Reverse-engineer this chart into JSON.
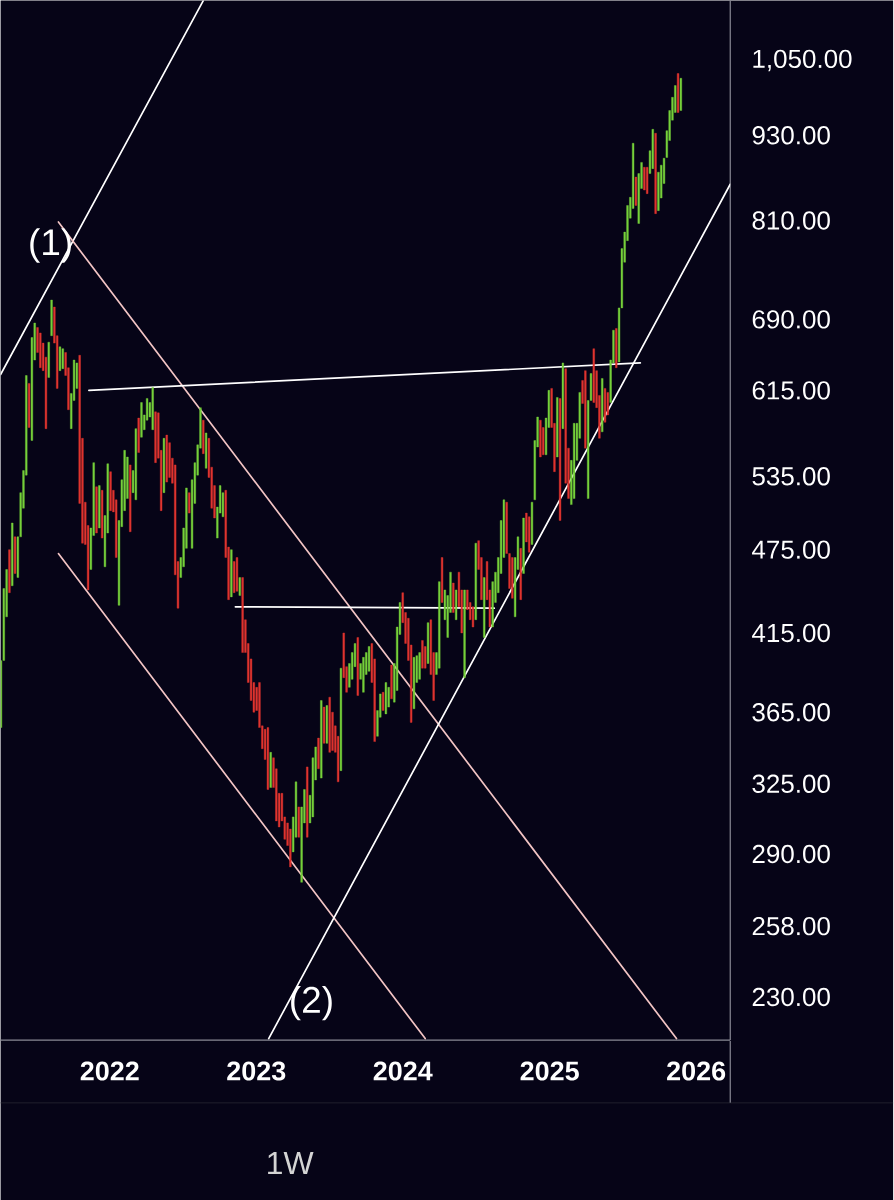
{
  "chart_data": {
    "type": "candlestick",
    "x": [
      "2021-04-05",
      "2021-04-12",
      "2021-04-19",
      "2021-04-26",
      "2021-05-03",
      "2021-05-10",
      "2021-05-17",
      "2021-05-24",
      "2021-05-31",
      "2021-06-07",
      "2021-06-14",
      "2021-06-21",
      "2021-06-28",
      "2021-07-05",
      "2021-07-12",
      "2021-07-19",
      "2021-07-26",
      "2021-08-02",
      "2021-08-09",
      "2021-08-16",
      "2021-08-23",
      "2021-08-30",
      "2021-09-06",
      "2021-09-13",
      "2021-09-20",
      "2021-09-27",
      "2021-10-04",
      "2021-10-11",
      "2021-10-18",
      "2021-10-25",
      "2021-11-01",
      "2021-11-08",
      "2021-11-15",
      "2021-11-22",
      "2021-11-29",
      "2021-12-06",
      "2021-12-13",
      "2021-12-20",
      "2021-12-27",
      "2022-01-03",
      "2022-01-10",
      "2022-01-17",
      "2022-01-24",
      "2022-01-31",
      "2022-02-07",
      "2022-02-14",
      "2022-02-21",
      "2022-02-28",
      "2022-03-07",
      "2022-03-14",
      "2022-03-21",
      "2022-03-28",
      "2022-04-04",
      "2022-04-11",
      "2022-04-18",
      "2022-04-25",
      "2022-05-02",
      "2022-05-09",
      "2022-05-16",
      "2022-05-23",
      "2022-05-30",
      "2022-06-06",
      "2022-06-13",
      "2022-06-20",
      "2022-06-27",
      "2022-07-04",
      "2022-07-11",
      "2022-07-18",
      "2022-07-25",
      "2022-08-01",
      "2022-08-08",
      "2022-08-15",
      "2022-08-22",
      "2022-08-29",
      "2022-09-05",
      "2022-09-12",
      "2022-09-19",
      "2022-09-26",
      "2022-10-03",
      "2022-10-10",
      "2022-10-17",
      "2022-10-24",
      "2022-10-31",
      "2022-11-07",
      "2022-11-14",
      "2022-11-21",
      "2022-11-28",
      "2022-12-05",
      "2022-12-12",
      "2022-12-19",
      "2022-12-26",
      "2023-01-02",
      "2023-01-09",
      "2023-01-16",
      "2023-01-23",
      "2023-01-30",
      "2023-02-06",
      "2023-02-13",
      "2023-02-20",
      "2023-02-27",
      "2023-03-06",
      "2023-03-13",
      "2023-03-20",
      "2023-03-27",
      "2023-04-03",
      "2023-04-10",
      "2023-04-17",
      "2023-04-24",
      "2023-05-01",
      "2023-05-08",
      "2023-05-15",
      "2023-05-22",
      "2023-05-29",
      "2023-06-05",
      "2023-06-12",
      "2023-06-19",
      "2023-06-26",
      "2023-07-03",
      "2023-07-10",
      "2023-07-17",
      "2023-07-24",
      "2023-07-31",
      "2023-08-07",
      "2023-08-14",
      "2023-08-21",
      "2023-08-28",
      "2023-09-04",
      "2023-09-11",
      "2023-09-18",
      "2023-09-25",
      "2023-10-02",
      "2023-10-09",
      "2023-10-16",
      "2023-10-23",
      "2023-10-30",
      "2023-11-06",
      "2023-11-13",
      "2023-11-20",
      "2023-11-27",
      "2023-12-04",
      "2023-12-11",
      "2023-12-18",
      "2023-12-25",
      "2024-01-01",
      "2024-01-08",
      "2024-01-15",
      "2024-01-22",
      "2024-01-29",
      "2024-02-05",
      "2024-02-12",
      "2024-02-19",
      "2024-02-26",
      "2024-03-04",
      "2024-03-11",
      "2024-03-18",
      "2024-03-25",
      "2024-04-01",
      "2024-04-08",
      "2024-04-15",
      "2024-04-22",
      "2024-04-29",
      "2024-05-06",
      "2024-05-13",
      "2024-05-20",
      "2024-05-27",
      "2024-06-03",
      "2024-06-10",
      "2024-06-17",
      "2024-06-24",
      "2024-07-01",
      "2024-07-08",
      "2024-07-15",
      "2024-07-22",
      "2024-07-29",
      "2024-08-05",
      "2024-08-12",
      "2024-08-19",
      "2024-08-26",
      "2024-09-02",
      "2024-09-09",
      "2024-09-16",
      "2024-09-23",
      "2024-09-30",
      "2024-10-07",
      "2024-10-14",
      "2024-10-21",
      "2024-10-28",
      "2024-11-04",
      "2024-11-11",
      "2024-11-18",
      "2024-11-25",
      "2024-12-02",
      "2024-12-09",
      "2024-12-16",
      "2024-12-23",
      "2024-12-30",
      "2025-01-06",
      "2025-01-13",
      "2025-01-20",
      "2025-01-27",
      "2025-02-03",
      "2025-02-10",
      "2025-02-17",
      "2025-02-24",
      "2025-03-03",
      "2025-03-10",
      "2025-03-17",
      "2025-03-24",
      "2025-03-31",
      "2025-04-07",
      "2025-04-14",
      "2025-04-21",
      "2025-04-28",
      "2025-05-05",
      "2025-05-12",
      "2025-05-19",
      "2025-05-26",
      "2025-06-02",
      "2025-06-09",
      "2025-06-16",
      "2025-06-23",
      "2025-06-30",
      "2025-07-07",
      "2025-07-14",
      "2025-07-21",
      "2025-07-28",
      "2025-08-04",
      "2025-08-11",
      "2025-08-18",
      "2025-08-25",
      "2025-09-01",
      "2025-09-08",
      "2025-09-15",
      "2025-09-22",
      "2025-09-29",
      "2025-10-06",
      "2025-10-13",
      "2025-10-20",
      "2025-10-27",
      "2025-11-03",
      "2025-11-10",
      "2025-11-17",
      "2025-11-24"
    ],
    "ohlc": [
      [
        356,
        397,
        356,
        397
      ],
      [
        397,
        446,
        397,
        446
      ],
      [
        426,
        460,
        426,
        460
      ],
      [
        475,
        475,
        443,
        443
      ],
      [
        448,
        496,
        448,
        496
      ],
      [
        485,
        485,
        457,
        457
      ],
      [
        454,
        485,
        454,
        485
      ],
      [
        485,
        521,
        485,
        521
      ],
      [
        508,
        540,
        508,
        540
      ],
      [
        536,
        630,
        536,
        630
      ],
      [
        622,
        622,
        579,
        579
      ],
      [
        567,
        670,
        567,
        670
      ],
      [
        646,
        686,
        646,
        686
      ],
      [
        681,
        681,
        654,
        654
      ],
      [
        675,
        675,
        638,
        638
      ],
      [
        664,
        664,
        635,
        635
      ],
      [
        649,
        649,
        578,
        578
      ],
      [
        628,
        665,
        628,
        665
      ],
      [
        672,
        712,
        672,
        712
      ],
      [
        704,
        704,
        664,
        664
      ],
      [
        672,
        672,
        617,
        617
      ],
      [
        635,
        660,
        635,
        660
      ],
      [
        637,
        658,
        637,
        658
      ],
      [
        654,
        654,
        630,
        630
      ],
      [
        638,
        638,
        596,
        596
      ],
      [
        578,
        612,
        578,
        612
      ],
      [
        605,
        646,
        605,
        646
      ],
      [
        617,
        643,
        617,
        643
      ],
      [
        651,
        651,
        512,
        512
      ],
      [
        569,
        569,
        480,
        480
      ],
      [
        513,
        513,
        479,
        479
      ],
      [
        494,
        494,
        445,
        445
      ],
      [
        460,
        492,
        460,
        492
      ],
      [
        486,
        547,
        486,
        547
      ],
      [
        526,
        526,
        488,
        488
      ],
      [
        492,
        527,
        492,
        527
      ],
      [
        523,
        523,
        484,
        484
      ],
      [
        462,
        502,
        462,
        502
      ],
      [
        488,
        546,
        488,
        546
      ],
      [
        539,
        539,
        506,
        506
      ],
      [
        523,
        523,
        505,
        505
      ],
      [
        515,
        515,
        469,
        469
      ],
      [
        434,
        498,
        434,
        498
      ],
      [
        493,
        532,
        493,
        532
      ],
      [
        506,
        558,
        506,
        558
      ],
      [
        516,
        552,
        516,
        552
      ],
      [
        545,
        545,
        489,
        489
      ],
      [
        521,
        540,
        521,
        540
      ],
      [
        515,
        578,
        515,
        578
      ],
      [
        588,
        588,
        556,
        556
      ],
      [
        570,
        603,
        570,
        603
      ],
      [
        577,
        591,
        577,
        591
      ],
      [
        586,
        607,
        586,
        607
      ],
      [
        589,
        603,
        589,
        603
      ],
      [
        577,
        618,
        577,
        618
      ],
      [
        594,
        594,
        547,
        547
      ],
      [
        593,
        593,
        551,
        551
      ],
      [
        558,
        558,
        506,
        506
      ],
      [
        521,
        569,
        521,
        569
      ],
      [
        572,
        572,
        530,
        530
      ],
      [
        565,
        565,
        534,
        534
      ],
      [
        551,
        551,
        529,
        529
      ],
      [
        545,
        545,
        456,
        456
      ],
      [
        466,
        466,
        432,
        432
      ],
      [
        454,
        469,
        454,
        469
      ],
      [
        462,
        492,
        462,
        492
      ],
      [
        476,
        525,
        476,
        525
      ],
      [
        521,
        521,
        504,
        504
      ],
      [
        476,
        532,
        476,
        532
      ],
      [
        512,
        547,
        512,
        547
      ],
      [
        536,
        563,
        536,
        563
      ],
      [
        560,
        598,
        560,
        598
      ],
      [
        586,
        586,
        555,
        555
      ],
      [
        542,
        574,
        542,
        574
      ],
      [
        569,
        569,
        534,
        534
      ],
      [
        543,
        543,
        508,
        508
      ],
      [
        527,
        527,
        500,
        500
      ],
      [
        484,
        509,
        484,
        509
      ],
      [
        504,
        527,
        504,
        527
      ],
      [
        501,
        521,
        501,
        521
      ],
      [
        523,
        523,
        469,
        469
      ],
      [
        477,
        477,
        438,
        438
      ],
      [
        440,
        475,
        440,
        475
      ],
      [
        466,
        466,
        443,
        443
      ],
      [
        469,
        469,
        444,
        444
      ],
      [
        441,
        454,
        441,
        454
      ],
      [
        454,
        454,
        402,
        402
      ],
      [
        424,
        424,
        402,
        402
      ],
      [
        408,
        408,
        383,
        383
      ],
      [
        398,
        398,
        372,
        372
      ],
      [
        383,
        383,
        365,
        365
      ],
      [
        380,
        380,
        366,
        366
      ],
      [
        383,
        383,
        356,
        356
      ],
      [
        357,
        357,
        344,
        344
      ],
      [
        355,
        355,
        338,
        338
      ],
      [
        356,
        356,
        322,
        322
      ],
      [
        323,
        342,
        323,
        342
      ],
      [
        339,
        339,
        323,
        323
      ],
      [
        333,
        333,
        306,
        306
      ],
      [
        320,
        320,
        303,
        303
      ],
      [
        320,
        320,
        306,
        306
      ],
      [
        308,
        308,
        297,
        297
      ],
      [
        305,
        305,
        294,
        294
      ],
      [
        302,
        302,
        284,
        284
      ],
      [
        291,
        308,
        291,
        308
      ],
      [
        298,
        326,
        298,
        326
      ],
      [
        313,
        313,
        298,
        298
      ],
      [
        277,
        313,
        277,
        313
      ],
      [
        305,
        322,
        305,
        322
      ],
      [
        334,
        334,
        298,
        298
      ],
      [
        305,
        319,
        305,
        319
      ],
      [
        308,
        339,
        308,
        339
      ],
      [
        327,
        345,
        327,
        345
      ],
      [
        350,
        350,
        333,
        333
      ],
      [
        328,
        372,
        328,
        372
      ],
      [
        368,
        368,
        347,
        347
      ],
      [
        347,
        369,
        347,
        369
      ],
      [
        374,
        374,
        342,
        342
      ],
      [
        365,
        365,
        343,
        343
      ],
      [
        357,
        357,
        342,
        342
      ],
      [
        351,
        351,
        326,
        326
      ],
      [
        332,
        392,
        332,
        392
      ],
      [
        415,
        415,
        386,
        386
      ],
      [
        393,
        393,
        377,
        377
      ],
      [
        380,
        395,
        380,
        395
      ],
      [
        385,
        402,
        385,
        402
      ],
      [
        393,
        408,
        393,
        408
      ],
      [
        412,
        412,
        375,
        375
      ],
      [
        385,
        395,
        385,
        395
      ],
      [
        377,
        399,
        377,
        399
      ],
      [
        388,
        402,
        388,
        402
      ],
      [
        390,
        406,
        390,
        406
      ],
      [
        408,
        408,
        383,
        383
      ],
      [
        398,
        398,
        348,
        348
      ],
      [
        351,
        366,
        351,
        366
      ],
      [
        362,
        376,
        362,
        376
      ],
      [
        377,
        377,
        366,
        366
      ],
      [
        364,
        383,
        364,
        383
      ],
      [
        368,
        380,
        368,
        380
      ],
      [
        394,
        394,
        373,
        373
      ],
      [
        371,
        395,
        371,
        395
      ],
      [
        378,
        419,
        378,
        419
      ],
      [
        414,
        436,
        414,
        436
      ],
      [
        443,
        443,
        422,
        422
      ],
      [
        429,
        429,
        408,
        408
      ],
      [
        425,
        425,
        397,
        397
      ],
      [
        407,
        407,
        359,
        359
      ],
      [
        367,
        399,
        367,
        399
      ],
      [
        383,
        400,
        383,
        400
      ],
      [
        385,
        402,
        385,
        402
      ],
      [
        410,
        410,
        392,
        392
      ],
      [
        406,
        406,
        392,
        392
      ],
      [
        395,
        422,
        395,
        422
      ],
      [
        424,
        424,
        388,
        388
      ],
      [
        402,
        402,
        372,
        372
      ],
      [
        388,
        402,
        388,
        402
      ],
      [
        392,
        451,
        392,
        451
      ],
      [
        469,
        469,
        436,
        436
      ],
      [
        424,
        445,
        424,
        445
      ],
      [
        412,
        441,
        412,
        441
      ],
      [
        429,
        458,
        429,
        458
      ],
      [
        450,
        450,
        429,
        429
      ],
      [
        424,
        445,
        424,
        445
      ],
      [
        458,
        458,
        433,
        433
      ],
      [
        445,
        445,
        415,
        415
      ],
      [
        386,
        445,
        386,
        445
      ],
      [
        445,
        445,
        431,
        431
      ],
      [
        436,
        436,
        424,
        424
      ],
      [
        433,
        433,
        419,
        419
      ],
      [
        424,
        480,
        424,
        480
      ],
      [
        482,
        482,
        460,
        460
      ],
      [
        469,
        469,
        438,
        438
      ],
      [
        412,
        454,
        412,
        454
      ],
      [
        466,
        466,
        438,
        438
      ],
      [
        445,
        445,
        419,
        419
      ],
      [
        419,
        451,
        419,
        451
      ],
      [
        436,
        458,
        436,
        458
      ],
      [
        443,
        469,
        443,
        469
      ],
      [
        457,
        498,
        457,
        498
      ],
      [
        469,
        515,
        469,
        515
      ],
      [
        513,
        513,
        472,
        472
      ],
      [
        472,
        472,
        446,
        446
      ],
      [
        469,
        469,
        439,
        439
      ],
      [
        426,
        469,
        426,
        469
      ],
      [
        460,
        485,
        460,
        485
      ],
      [
        476,
        476,
        438,
        438
      ],
      [
        457,
        500,
        457,
        500
      ],
      [
        504,
        504,
        481,
        481
      ],
      [
        501,
        501,
        473,
        473
      ],
      [
        479,
        513,
        479,
        513
      ],
      [
        515,
        567,
        515,
        567
      ],
      [
        561,
        589,
        561,
        589
      ],
      [
        586,
        586,
        552,
        552
      ],
      [
        579,
        579,
        554,
        554
      ],
      [
        554,
        588,
        554,
        588
      ],
      [
        579,
        615,
        579,
        615
      ],
      [
        617,
        617,
        579,
        579
      ],
      [
        583,
        583,
        539,
        539
      ],
      [
        552,
        608,
        552,
        608
      ],
      [
        607,
        607,
        498,
        498
      ],
      [
        578,
        643,
        578,
        643
      ],
      [
        637,
        637,
        529,
        529
      ],
      [
        560,
        560,
        516,
        516
      ],
      [
        511,
        549,
        511,
        549
      ],
      [
        516,
        583,
        516,
        583
      ],
      [
        549,
        583,
        549,
        583
      ],
      [
        569,
        613,
        569,
        613
      ],
      [
        625,
        625,
        602,
        602
      ],
      [
        635,
        635,
        560,
        560
      ],
      [
        516,
        605,
        516,
        605
      ],
      [
        605,
        632,
        605,
        632
      ],
      [
        658,
        658,
        603,
        603
      ],
      [
        635,
        635,
        598,
        598
      ],
      [
        610,
        610,
        569,
        569
      ],
      [
        575,
        627,
        575,
        627
      ],
      [
        617,
        617,
        584,
        584
      ],
      [
        613,
        613,
        591,
        591
      ],
      [
        603,
        646,
        603,
        646
      ],
      [
        643,
        678,
        643,
        678
      ],
      [
        680,
        680,
        638,
        638
      ],
      [
        644,
        703,
        644,
        703
      ],
      [
        703,
        774,
        703,
        774
      ],
      [
        757,
        795,
        757,
        795
      ],
      [
        784,
        830,
        784,
        830
      ],
      [
        813,
        841,
        813,
        841
      ],
      [
        826,
        918,
        826,
        918
      ],
      [
        869,
        869,
        830,
        830
      ],
      [
        806,
        874,
        806,
        874
      ],
      [
        853,
        890,
        853,
        890
      ],
      [
        883,
        883,
        851,
        851
      ],
      [
        883,
        883,
        846,
        846
      ],
      [
        874,
        907,
        874,
        907
      ],
      [
        881,
        939,
        881,
        939
      ],
      [
        933,
        933,
        819,
        819
      ],
      [
        823,
        876,
        823,
        876
      ],
      [
        840,
        886,
        840,
        886
      ],
      [
        860,
        896,
        860,
        896
      ],
      [
        897,
        937,
        897,
        937
      ],
      [
        922,
        968,
        922,
        968
      ],
      [
        953,
        989,
        953,
        989
      ],
      [
        965,
        1008,
        965,
        1008
      ],
      [
        1028,
        1028,
        965,
        965
      ],
      [
        968,
        1020,
        968,
        1020
      ]
    ],
    "colors": [
      "#76d13b",
      "#76d13b",
      "#76d13b",
      "#e0342f",
      "#76d13b",
      "#e0342f",
      "#76d13b",
      "#76d13b",
      "#76d13b",
      "#76d13b",
      "#e0342f",
      "#76d13b",
      "#76d13b",
      "#e0342f",
      "#e0342f",
      "#e0342f",
      "#e0342f",
      "#76d13b",
      "#76d13b",
      "#e0342f",
      "#e0342f",
      "#76d13b",
      "#76d13b",
      "#e0342f",
      "#e0342f",
      "#76d13b",
      "#76d13b",
      "#76d13b",
      "#e0342f",
      "#e0342f",
      "#e0342f",
      "#e0342f",
      "#76d13b",
      "#76d13b",
      "#e0342f",
      "#76d13b",
      "#e0342f",
      "#76d13b",
      "#76d13b",
      "#e0342f",
      "#e0342f",
      "#e0342f",
      "#76d13b",
      "#76d13b",
      "#76d13b",
      "#76d13b",
      "#e0342f",
      "#76d13b",
      "#76d13b",
      "#e0342f",
      "#76d13b",
      "#76d13b",
      "#76d13b",
      "#76d13b",
      "#76d13b",
      "#e0342f",
      "#e0342f",
      "#e0342f",
      "#76d13b",
      "#e0342f",
      "#e0342f",
      "#e0342f",
      "#e0342f",
      "#e0342f",
      "#76d13b",
      "#76d13b",
      "#76d13b",
      "#e0342f",
      "#76d13b",
      "#76d13b",
      "#76d13b",
      "#76d13b",
      "#e0342f",
      "#76d13b",
      "#e0342f",
      "#e0342f",
      "#e0342f",
      "#76d13b",
      "#76d13b",
      "#76d13b",
      "#e0342f",
      "#e0342f",
      "#76d13b",
      "#e0342f",
      "#e0342f",
      "#76d13b",
      "#e0342f",
      "#e0342f",
      "#e0342f",
      "#e0342f",
      "#e0342f",
      "#e0342f",
      "#e0342f",
      "#e0342f",
      "#e0342f",
      "#e0342f",
      "#76d13b",
      "#e0342f",
      "#e0342f",
      "#e0342f",
      "#e0342f",
      "#e0342f",
      "#e0342f",
      "#e0342f",
      "#76d13b",
      "#76d13b",
      "#e0342f",
      "#76d13b",
      "#76d13b",
      "#e0342f",
      "#76d13b",
      "#76d13b",
      "#76d13b",
      "#e0342f",
      "#76d13b",
      "#e0342f",
      "#76d13b",
      "#e0342f",
      "#e0342f",
      "#e0342f",
      "#e0342f",
      "#76d13b",
      "#e0342f",
      "#e0342f",
      "#76d13b",
      "#76d13b",
      "#76d13b",
      "#e0342f",
      "#76d13b",
      "#76d13b",
      "#76d13b",
      "#76d13b",
      "#e0342f",
      "#e0342f",
      "#76d13b",
      "#76d13b",
      "#e0342f",
      "#76d13b",
      "#76d13b",
      "#e0342f",
      "#76d13b",
      "#76d13b",
      "#76d13b",
      "#e0342f",
      "#e0342f",
      "#e0342f",
      "#e0342f",
      "#76d13b",
      "#76d13b",
      "#76d13b",
      "#e0342f",
      "#e0342f",
      "#76d13b",
      "#e0342f",
      "#e0342f",
      "#76d13b",
      "#76d13b",
      "#e0342f",
      "#76d13b",
      "#76d13b",
      "#76d13b",
      "#e0342f",
      "#76d13b",
      "#e0342f",
      "#e0342f",
      "#76d13b",
      "#e0342f",
      "#e0342f",
      "#e0342f",
      "#76d13b",
      "#e0342f",
      "#e0342f",
      "#76d13b",
      "#e0342f",
      "#e0342f",
      "#76d13b",
      "#76d13b",
      "#76d13b",
      "#76d13b",
      "#76d13b",
      "#e0342f",
      "#e0342f",
      "#e0342f",
      "#76d13b",
      "#76d13b",
      "#e0342f",
      "#76d13b",
      "#e0342f",
      "#e0342f",
      "#76d13b",
      "#76d13b",
      "#76d13b",
      "#e0342f",
      "#e0342f",
      "#76d13b",
      "#76d13b",
      "#e0342f",
      "#e0342f",
      "#76d13b",
      "#e0342f",
      "#76d13b",
      "#e0342f",
      "#e0342f",
      "#76d13b",
      "#76d13b",
      "#76d13b",
      "#76d13b",
      "#e0342f",
      "#e0342f",
      "#76d13b",
      "#76d13b",
      "#e0342f",
      "#e0342f",
      "#e0342f",
      "#76d13b",
      "#e0342f",
      "#e0342f",
      "#76d13b",
      "#76d13b",
      "#e0342f",
      "#76d13b",
      "#76d13b",
      "#76d13b",
      "#76d13b",
      "#76d13b",
      "#76d13b",
      "#e0342f",
      "#76d13b",
      "#76d13b",
      "#e0342f",
      "#e0342f",
      "#76d13b",
      "#76d13b",
      "#e0342f",
      "#76d13b",
      "#76d13b",
      "#76d13b",
      "#76d13b",
      "#76d13b",
      "#76d13b",
      "#76d13b",
      "#e0342f",
      "#76d13b"
    ],
    "series": [
      {
        "type": "line",
        "color": "#ffffff",
        "x": [
          "2021-04-04",
          "2022-08-22"
        ],
        "values": [
          631,
          1157
        ]
      },
      {
        "type": "line",
        "color": "#f2c4c4",
        "x": [
          "2021-08-26",
          "2025-11-13"
        ],
        "values": [
          808,
          215
        ]
      },
      {
        "type": "line",
        "color": "#f2c4c4",
        "x": [
          "2021-08-26",
          "2024-02-26"
        ],
        "values": [
          472,
          215
        ]
      },
      {
        "type": "line",
        "color": "#ffffff",
        "x": [
          "2021-11-10",
          "2025-08-15"
        ],
        "values": [
          615,
          643
        ]
      },
      {
        "type": "line",
        "color": "#ffffff",
        "x": [
          "2022-11-10",
          "2024-08-16"
        ],
        "values": [
          433,
          432
        ]
      },
      {
        "type": "line",
        "color": "#ffffff",
        "x": [
          "2023-02-01",
          "2026-03-27"
        ],
        "values": [
          215,
          859
        ]
      }
    ],
    "xlim": [
      "2021-04-04",
      "2026-03-27"
    ],
    "ylim": [
      214.5,
      1157
    ],
    "xticks": [
      "2022",
      "2023",
      "2024",
      "2025",
      "2026"
    ],
    "yticks": [
      {
        "value": 230,
        "label": "230.00"
      },
      {
        "value": 258,
        "label": "258.00"
      },
      {
        "value": 290,
        "label": "290.00"
      },
      {
        "value": 325,
        "label": "325.00"
      },
      {
        "value": 365,
        "label": "365.00"
      },
      {
        "value": 415,
        "label": "415.00"
      },
      {
        "value": 475,
        "label": "475.00"
      },
      {
        "value": 535,
        "label": "535.00"
      },
      {
        "value": 615,
        "label": "615.00"
      },
      {
        "value": 690,
        "label": "690.00"
      },
      {
        "value": 810,
        "label": "810.00"
      },
      {
        "value": 930,
        "label": "930.00"
      },
      {
        "value": 1050,
        "label": "1,050.00"
      }
    ],
    "log": "y",
    "annotations": [
      "(1)",
      "(2)",
      "1W"
    ]
  }
}
